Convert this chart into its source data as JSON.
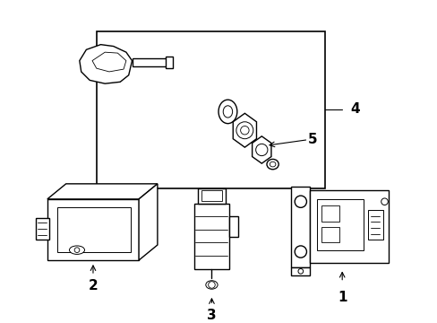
{
  "background_color": "#ffffff",
  "line_color": "#000000",
  "line_width": 1.0,
  "fig_width": 4.89,
  "fig_height": 3.6,
  "dpi": 100
}
